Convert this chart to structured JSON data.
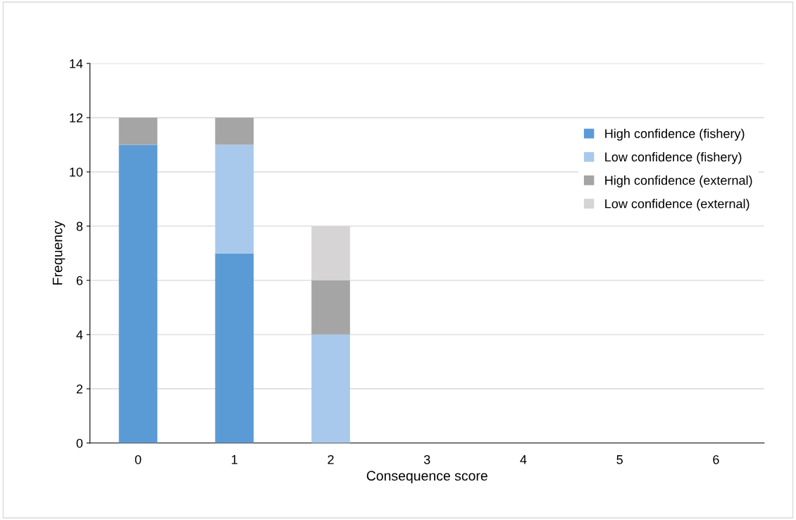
{
  "chart_data": {
    "type": "bar",
    "stacked": true,
    "xlabel": "Consequence score",
    "ylabel": "Frequency",
    "categories": [
      "0",
      "1",
      "2",
      "3",
      "4",
      "5",
      "6"
    ],
    "series": [
      {
        "name": "High confidence (fishery)",
        "color": "#5b9bd5",
        "values": [
          11,
          7,
          0,
          0,
          0,
          0,
          0
        ]
      },
      {
        "name": "Low confidence (fishery)",
        "color": "#a8c9ec",
        "values": [
          0,
          4,
          4,
          0,
          0,
          0,
          0
        ]
      },
      {
        "name": "High confidence (external)",
        "color": "#a5a5a5",
        "values": [
          1,
          1,
          2,
          0,
          0,
          0,
          0
        ]
      },
      {
        "name": "Low confidence (external)",
        "color": "#d6d4d4",
        "values": [
          0,
          0,
          2,
          0,
          0,
          0,
          0
        ]
      }
    ],
    "ylim": [
      0,
      14
    ],
    "yticks": [
      0,
      2,
      4,
      6,
      8,
      10,
      12,
      14
    ],
    "grid": "y",
    "legend": "right"
  }
}
